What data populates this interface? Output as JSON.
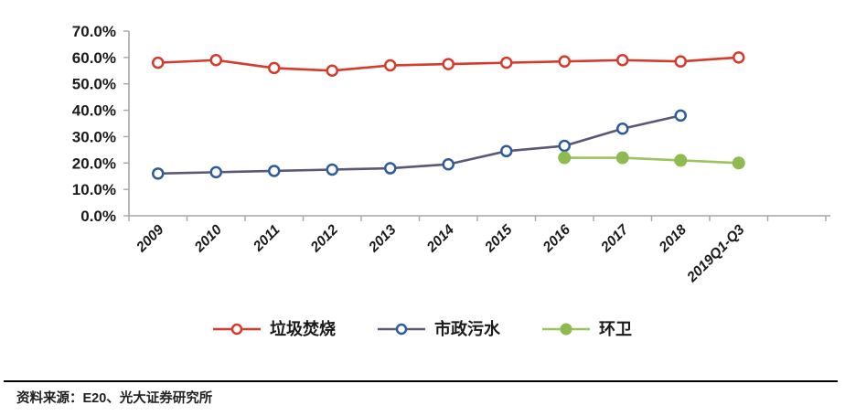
{
  "chart_data": {
    "type": "line",
    "categories": [
      "2009",
      "2010",
      "2011",
      "2012",
      "2013",
      "2014",
      "2015",
      "2016",
      "2017",
      "2018",
      "2019Q1-Q3"
    ],
    "series": [
      {
        "name": "垃圾焚烧",
        "marker": "open-circle",
        "color": "#d63a2a",
        "line_color": "#d63a2a",
        "values": [
          58,
          59,
          56,
          55,
          57,
          57.5,
          58,
          58.5,
          59,
          58.5,
          60
        ]
      },
      {
        "name": "市政污水",
        "marker": "open-circle",
        "color": "#2e5c99",
        "line_color": "#5a5878",
        "values": [
          16,
          16.5,
          17,
          17.5,
          18,
          19.5,
          24.5,
          26.5,
          33,
          38,
          null
        ]
      },
      {
        "name": "环卫",
        "marker": "filled-circle",
        "color": "#8dbb4f",
        "line_color": "#9cc35f",
        "values": [
          null,
          null,
          null,
          null,
          null,
          null,
          null,
          22,
          22,
          21,
          20
        ]
      }
    ],
    "ylim": [
      0,
      70
    ],
    "ytick_step": 10,
    "y_tick_labels": [
      "0.0%",
      "10.0%",
      "20.0%",
      "30.0%",
      "40.0%",
      "50.0%",
      "60.0%",
      "70.0%"
    ],
    "grid": false,
    "legend_position": "bottom",
    "axis_color": "#a6a6a6",
    "text_color": "#1a1a1a"
  },
  "footer": {
    "source_text": "资料来源：E20、光大证券研究所"
  }
}
